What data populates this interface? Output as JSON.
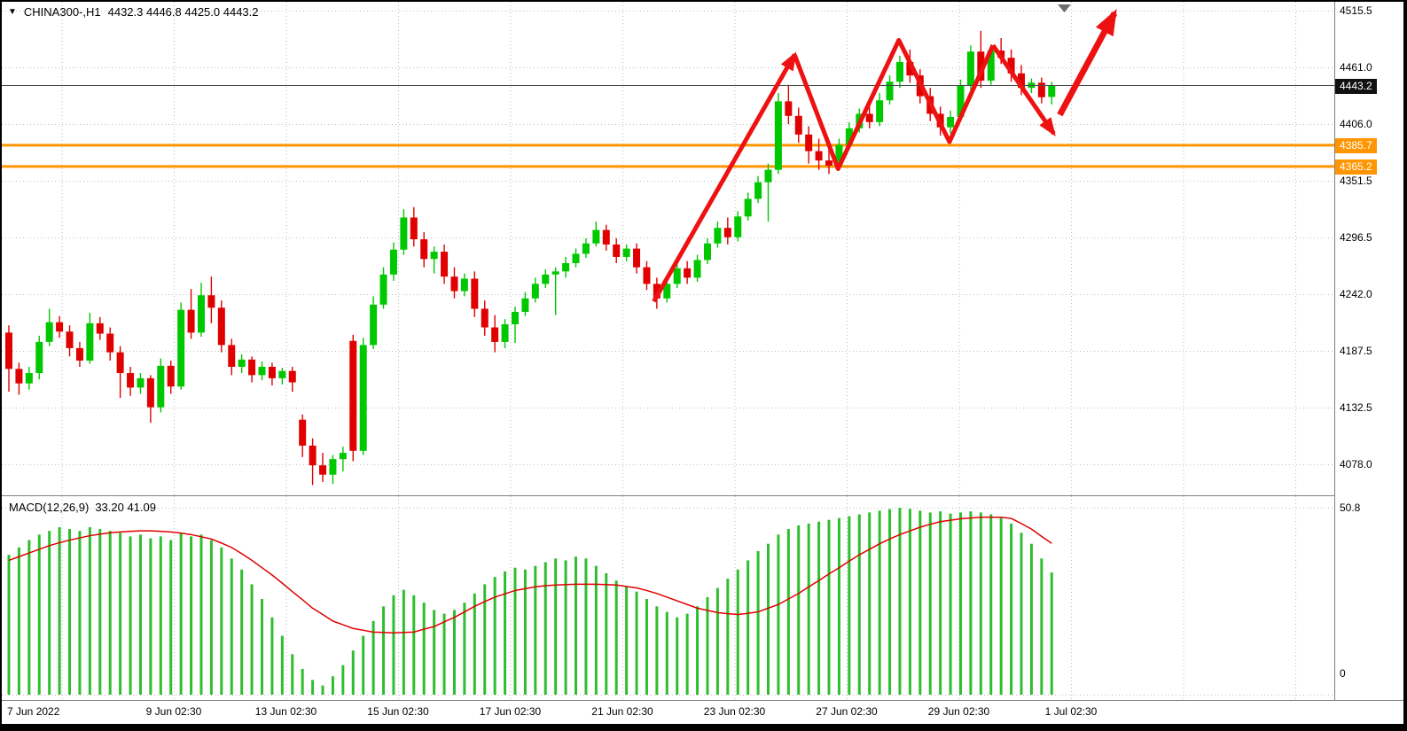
{
  "header": {
    "dropdown_icon": "▼",
    "symbol_period": "CHINA300-,H1",
    "ohlc": "4432.3 4446.8 4425.0 4443.2"
  },
  "chart_data": [
    {
      "type": "candlestick",
      "title": "CHINA300-,H1",
      "symbol": "CHINA300-",
      "timeframe": "H1",
      "current_bar": {
        "open": 4432.3,
        "high": 4446.8,
        "low": 4425.0,
        "close": 4443.2
      },
      "ylim": [
        4078.0,
        4515.5
      ],
      "grid": true,
      "price_ticks": [
        "4515.5",
        "4461.0",
        "4406.0",
        "4351.5",
        "4296.5",
        "4242.0",
        "4187.5",
        "4132.5",
        "4078.0"
      ],
      "current_price_label": "4443.2",
      "current_price": 4443.2,
      "levels": [
        {
          "label": "4385.7",
          "price": 4385.7
        },
        {
          "label": "4365.2",
          "price": 4365.2
        }
      ],
      "x_labels": [
        "7 Jun 2022",
        "9 Jun 02:30",
        "13 Jun 02:30",
        "15 Jun 02:30",
        "17 Jun 02:30",
        "21 Jun 02:30",
        "23 Jun 02:30",
        "27 Jun 02:30",
        "29 Jun 02:30",
        "1 Jul 02:30"
      ],
      "candles": [
        [
          4205,
          4212,
          4148,
          4170
        ],
        [
          4170,
          4176,
          4145,
          4156
        ],
        [
          4156,
          4172,
          4150,
          4166
        ],
        [
          4166,
          4202,
          4160,
          4196
        ],
        [
          4196,
          4228,
          4192,
          4215
        ],
        [
          4215,
          4221,
          4200,
          4206
        ],
        [
          4206,
          4212,
          4182,
          4190
        ],
        [
          4190,
          4196,
          4172,
          4178
        ],
        [
          4178,
          4224,
          4175,
          4214
        ],
        [
          4214,
          4220,
          4198,
          4204
        ],
        [
          4204,
          4210,
          4178,
          4186
        ],
        [
          4186,
          4192,
          4142,
          4166
        ],
        [
          4166,
          4172,
          4144,
          4152
        ],
        [
          4152,
          4166,
          4146,
          4161
        ],
        [
          4161,
          4164,
          4118,
          4133
        ],
        [
          4133,
          4180,
          4128,
          4173
        ],
        [
          4173,
          4178,
          4146,
          4153
        ],
        [
          4153,
          4234,
          4150,
          4227
        ],
        [
          4227,
          4247,
          4199,
          4205
        ],
        [
          4205,
          4253,
          4201,
          4241
        ],
        [
          4241,
          4259,
          4214,
          4229
        ],
        [
          4229,
          4236,
          4186,
          4193
        ],
        [
          4193,
          4199,
          4164,
          4172
        ],
        [
          4172,
          4184,
          4166,
          4179
        ],
        [
          4179,
          4182,
          4157,
          4164
        ],
        [
          4164,
          4177,
          4159,
          4172
        ],
        [
          4172,
          4176,
          4154,
          4161
        ],
        [
          4161,
          4171,
          4155,
          4168
        ],
        [
          4168,
          4172,
          4148,
          4157
        ],
        [
          4121,
          4126,
          4085,
          4096
        ],
        [
          4096,
          4103,
          4058,
          4077
        ],
        [
          4077,
          4089,
          4061,
          4068
        ],
        [
          4068,
          4087,
          4059,
          4083
        ],
        [
          4083,
          4095,
          4071,
          4089
        ],
        [
          4197,
          4203,
          4081,
          4091
        ],
        [
          4091,
          4200,
          4087,
          4193
        ],
        [
          4193,
          4240,
          4189,
          4232
        ],
        [
          4232,
          4268,
          4228,
          4261
        ],
        [
          4261,
          4292,
          4255,
          4285
        ],
        [
          4285,
          4324,
          4280,
          4316
        ],
        [
          4316,
          4326,
          4288,
          4295
        ],
        [
          4295,
          4302,
          4268,
          4276
        ],
        [
          4276,
          4288,
          4262,
          4283
        ],
        [
          4283,
          4290,
          4252,
          4259
        ],
        [
          4259,
          4268,
          4238,
          4245
        ],
        [
          4245,
          4262,
          4240,
          4257
        ],
        [
          4257,
          4264,
          4220,
          4228
        ],
        [
          4228,
          4236,
          4202,
          4210
        ],
        [
          4210,
          4222,
          4186,
          4196
        ],
        [
          4196,
          4218,
          4190,
          4213
        ],
        [
          4213,
          4230,
          4195,
          4225
        ],
        [
          4225,
          4244,
          4221,
          4238
        ],
        [
          4238,
          4258,
          4234,
          4252
        ],
        [
          4252,
          4266,
          4248,
          4261
        ],
        [
          4261,
          4268,
          4222,
          4264
        ],
        [
          4264,
          4278,
          4258,
          4272
        ],
        [
          4272,
          4286,
          4268,
          4281
        ],
        [
          4281,
          4296,
          4277,
          4291
        ],
        [
          4291,
          4312,
          4288,
          4304
        ],
        [
          4304,
          4309,
          4284,
          4290
        ],
        [
          4290,
          4296,
          4272,
          4278
        ],
        [
          4278,
          4290,
          4274,
          4286
        ],
        [
          4286,
          4291,
          4262,
          4268
        ],
        [
          4268,
          4274,
          4246,
          4252
        ],
        [
          4252,
          4258,
          4228,
          4238
        ],
        [
          4238,
          4256,
          4234,
          4252
        ],
        [
          4252,
          4272,
          4248,
          4267
        ],
        [
          4267,
          4274,
          4252,
          4258
        ],
        [
          4258,
          4280,
          4254,
          4275
        ],
        [
          4275,
          4296,
          4271,
          4291
        ],
        [
          4291,
          4312,
          4287,
          4306
        ],
        [
          4306,
          4316,
          4290,
          4297
        ],
        [
          4297,
          4322,
          4293,
          4317
        ],
        [
          4317,
          4340,
          4313,
          4334
        ],
        [
          4334,
          4356,
          4330,
          4350
        ],
        [
          4350,
          4368,
          4312,
          4362
        ],
        [
          4362,
          4436,
          4358,
          4428
        ],
        [
          4428,
          4444,
          4406,
          4414
        ],
        [
          4414,
          4422,
          4388,
          4396
        ],
        [
          4396,
          4404,
          4368,
          4380
        ],
        [
          4380,
          4392,
          4362,
          4371
        ],
        [
          4371,
          4383,
          4358,
          4366
        ],
        [
          4366,
          4392,
          4361,
          4386
        ],
        [
          4386,
          4408,
          4382,
          4402
        ],
        [
          4402,
          4421,
          4398,
          4416
        ],
        [
          4416,
          4423,
          4402,
          4408
        ],
        [
          4408,
          4436,
          4404,
          4429
        ],
        [
          4429,
          4453,
          4425,
          4447
        ],
        [
          4447,
          4472,
          4441,
          4466
        ],
        [
          4466,
          4478,
          4446,
          4453
        ],
        [
          4453,
          4459,
          4426,
          4433
        ],
        [
          4433,
          4441,
          4409,
          4416
        ],
        [
          4416,
          4423,
          4395,
          4403
        ],
        [
          4403,
          4419,
          4397,
          4413
        ],
        [
          4413,
          4449,
          4409,
          4443
        ],
        [
          4443,
          4482,
          4439,
          4476
        ],
        [
          4476,
          4496,
          4441,
          4448
        ],
        [
          4448,
          4483,
          4444,
          4477
        ],
        [
          4477,
          4489,
          4464,
          4470
        ],
        [
          4470,
          4478,
          4447,
          4455
        ],
        [
          4455,
          4463,
          4434,
          4441
        ],
        [
          4441,
          4450,
          4436,
          4446
        ],
        [
          4446,
          4451,
          4426,
          4432
        ],
        [
          4432.3,
          4446.8,
          4425.0,
          4443.2
        ]
      ],
      "annotations": {
        "color": "#EE1111",
        "zigzag": [
          [
            63.7,
            4235
          ],
          [
            77.6,
            4473
          ],
          [
            81.9,
            4363
          ],
          [
            87.9,
            4487
          ],
          [
            92.9,
            4389
          ],
          [
            97.2,
            4482
          ],
          [
            103.2,
            4397
          ]
        ],
        "projection": [
          [
            103.8,
            4415
          ],
          [
            109.2,
            4513
          ]
        ]
      },
      "colors": {
        "up": "#00C800",
        "down": "#E00000",
        "level_line": "#FF9500",
        "current_line": "#4A4A4A",
        "current_tag_bg": "#111111",
        "grid": "#BDBDBD",
        "shift_marker": "#6E6E6E"
      }
    },
    {
      "type": "macd",
      "label": "MACD(12,26,9)",
      "values_label": "33.20 41.09",
      "main_value": 33.2,
      "signal_value": 41.09,
      "y_ticks": [
        "50.8",
        "0"
      ],
      "ylim": [
        0,
        50.8
      ],
      "histogram": [
        38,
        40,
        42,
        43.5,
        44.5,
        45.5,
        45,
        44.5,
        45.5,
        45,
        44.5,
        44,
        43,
        43.5,
        42.5,
        43,
        42,
        44,
        43,
        43.5,
        42,
        40,
        37,
        34,
        30,
        26,
        21,
        16,
        11,
        7,
        4,
        2.5,
        5,
        8,
        12,
        16,
        20,
        24,
        27,
        28.5,
        27,
        25,
        23,
        22,
        23,
        25,
        27.5,
        30,
        32,
        33.5,
        34.5,
        34,
        35,
        36,
        37,
        36.5,
        37.5,
        37,
        35,
        33,
        31,
        29.5,
        28,
        26,
        24,
        22.5,
        21,
        22,
        24,
        26.5,
        29,
        31.5,
        34,
        36.5,
        39,
        41,
        43.5,
        45,
        46,
        46.5,
        47,
        47.5,
        48,
        48.5,
        49,
        49.5,
        50,
        50.4,
        50.8,
        50.5,
        50,
        49.5,
        49.8,
        49.2,
        49.5,
        49.8,
        49.5,
        49,
        48,
        46.5,
        44,
        41,
        37,
        33.2
      ],
      "signal": [
        36.5,
        37.5,
        38.5,
        39.5,
        40.5,
        41.3,
        42,
        42.6,
        43.2,
        43.6,
        44,
        44.2,
        44.4,
        44.5,
        44.5,
        44.4,
        44.2,
        43.9,
        43.5,
        42.9,
        42.3,
        41.2,
        40,
        38.3,
        36.5,
        34.5,
        32.5,
        30.3,
        28,
        25.8,
        23.5,
        21.8,
        20,
        19,
        18,
        17.5,
        17,
        16.9,
        16.8,
        16.9,
        17,
        17.8,
        18.5,
        19.8,
        21,
        22.5,
        24,
        25.3,
        26.5,
        27.4,
        28.3,
        28.8,
        29.3,
        29.6,
        29.8,
        29.9,
        30,
        30,
        30,
        29.9,
        29.8,
        29.4,
        29,
        28.3,
        27.5,
        26.5,
        25.5,
        24.5,
        23.5,
        22.9,
        22.3,
        22,
        21.8,
        22.1,
        22.5,
        23.5,
        24.5,
        26,
        27.5,
        29.3,
        31,
        32.8,
        34.5,
        36.3,
        38,
        39.5,
        41,
        42.3,
        43.5,
        44.5,
        45.5,
        46.3,
        47,
        47.4,
        47.8,
        48,
        48.2,
        48.2,
        48.2,
        47.9,
        46.5,
        45,
        43,
        41.1
      ],
      "colors": {
        "histogram": "#2FBE2F",
        "signal": "#E00000"
      }
    }
  ]
}
